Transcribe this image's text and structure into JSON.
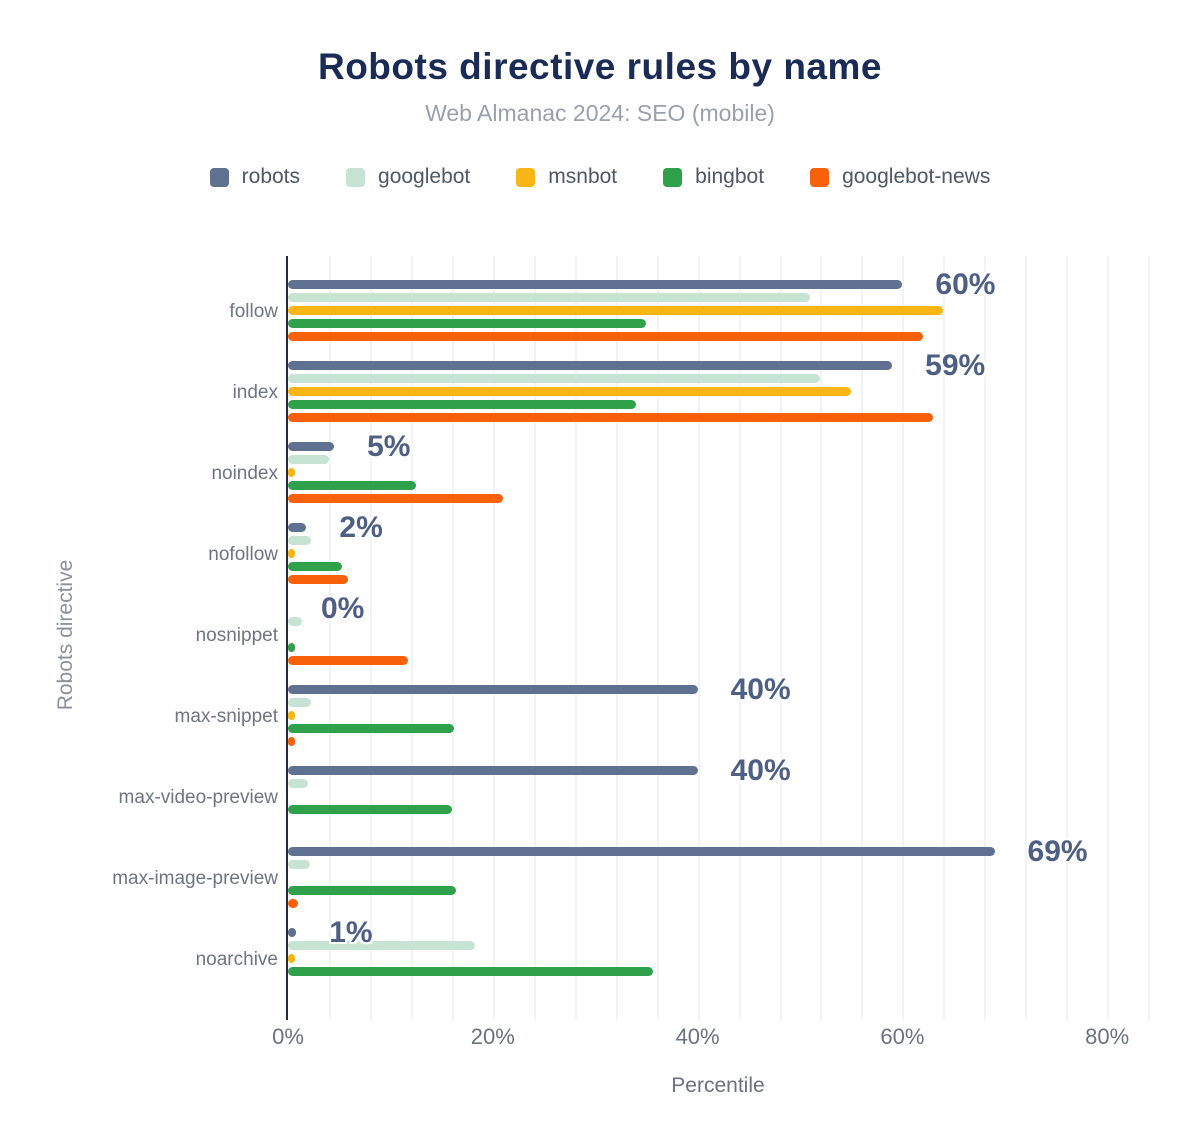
{
  "chart_data": {
    "type": "bar",
    "orientation": "horizontal",
    "title": "Robots directive rules by name",
    "subtitle": "Web Almanac 2024: SEO (mobile)",
    "xlabel": "Percentile",
    "ylabel": "Robots directive",
    "xlim": [
      0,
      80
    ],
    "x_ticks": [
      0,
      20,
      40,
      60,
      80
    ],
    "x_tick_labels": [
      "0%",
      "20%",
      "40%",
      "60%",
      "80%"
    ],
    "grid": true,
    "grid_step_percent": 4,
    "legend_position": "top",
    "categories": [
      "follow",
      "index",
      "noindex",
      "nofollow",
      "nosnippet",
      "max-snippet",
      "max-video-preview",
      "max-image-preview",
      "noarchive"
    ],
    "series": [
      {
        "name": "robots",
        "color": "#5f7090",
        "values": [
          60,
          59,
          4.5,
          1.8,
          0,
          40,
          40,
          69,
          0.8
        ]
      },
      {
        "name": "googlebot",
        "color": "#c7e3d3",
        "values": [
          51,
          52,
          4,
          2.2,
          1.4,
          2.2,
          2,
          2.1,
          18.3
        ]
      },
      {
        "name": "msnbot",
        "color": "#f8b616",
        "values": [
          64,
          55,
          0.4,
          0.4,
          0,
          0.3,
          0,
          0,
          0.4
        ]
      },
      {
        "name": "bingbot",
        "color": "#2fa14b",
        "values": [
          35,
          34,
          12.5,
          5.3,
          0.5,
          16.2,
          16,
          16.4,
          35.6
        ]
      },
      {
        "name": "googlebot-news",
        "color": "#f8610a",
        "values": [
          62,
          63,
          21,
          5.9,
          11.7,
          0.3,
          0,
          1,
          0
        ]
      }
    ],
    "value_labels": [
      "60%",
      "59%",
      "5%",
      "2%",
      "0%",
      "40%",
      "40%",
      "69%",
      "1%"
    ],
    "value_label_series": "robots",
    "colors": {
      "title": "#1a2c55",
      "subtitle": "#98a1ab",
      "axis_line": "#21293c",
      "gridline": "#f2f3f5",
      "value_label": "#4d5f85",
      "tick_label": "#6a7280"
    }
  }
}
